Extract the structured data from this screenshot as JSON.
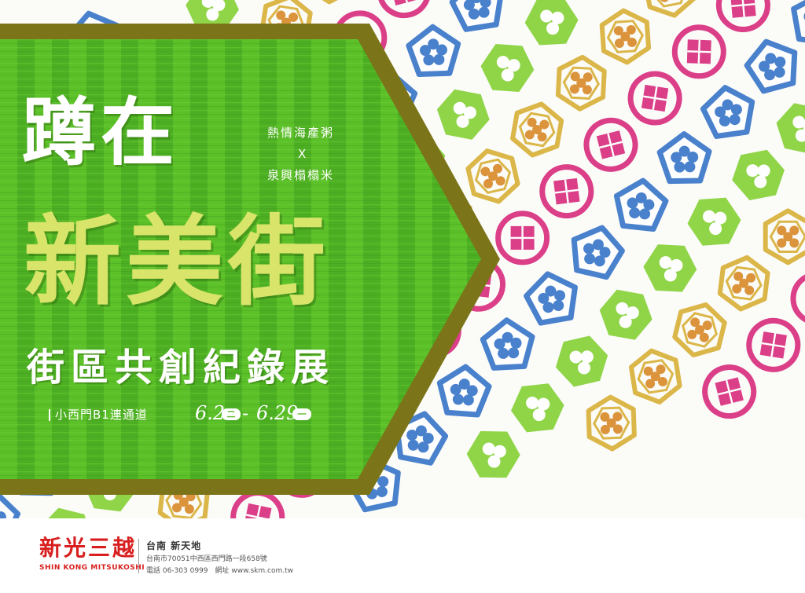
{
  "poster": {
    "title_line1": "蹲在",
    "title_line2": "新美街",
    "subtitle": "街區共創紀錄展",
    "collab_top": "熱情海產粥",
    "collab_x": "X",
    "collab_bottom": "泉興榻榻米",
    "location": "小西門B1連通道",
    "date_start": "6.2",
    "date_start_weekday": "二",
    "date_dash": "-",
    "date_end": "6.29",
    "date_end_weekday": "一",
    "colors": {
      "banner_green": "#52b524",
      "banner_border": "#7b7419",
      "title_yellow": "#d8e46a",
      "stamp_pink": "#d8307f",
      "stamp_blue": "#3a77c9",
      "stamp_green": "#88d23a",
      "stamp_gold": "#d9b13a"
    },
    "stamp_icons": [
      "pink-square-stamp-icon",
      "blue-flower-stamp-icon",
      "green-clover-stamp-icon",
      "gold-flower-stamp-icon"
    ]
  },
  "footer": {
    "logo_cn": "新光三越",
    "logo_en": "SHIN KONG MITSUKOSHI",
    "branch": "台南 新天地",
    "address": "台南市70051中西區西門路一段658號",
    "contact": "電話 06-303 0999　網址 www.skm.com.tw"
  }
}
